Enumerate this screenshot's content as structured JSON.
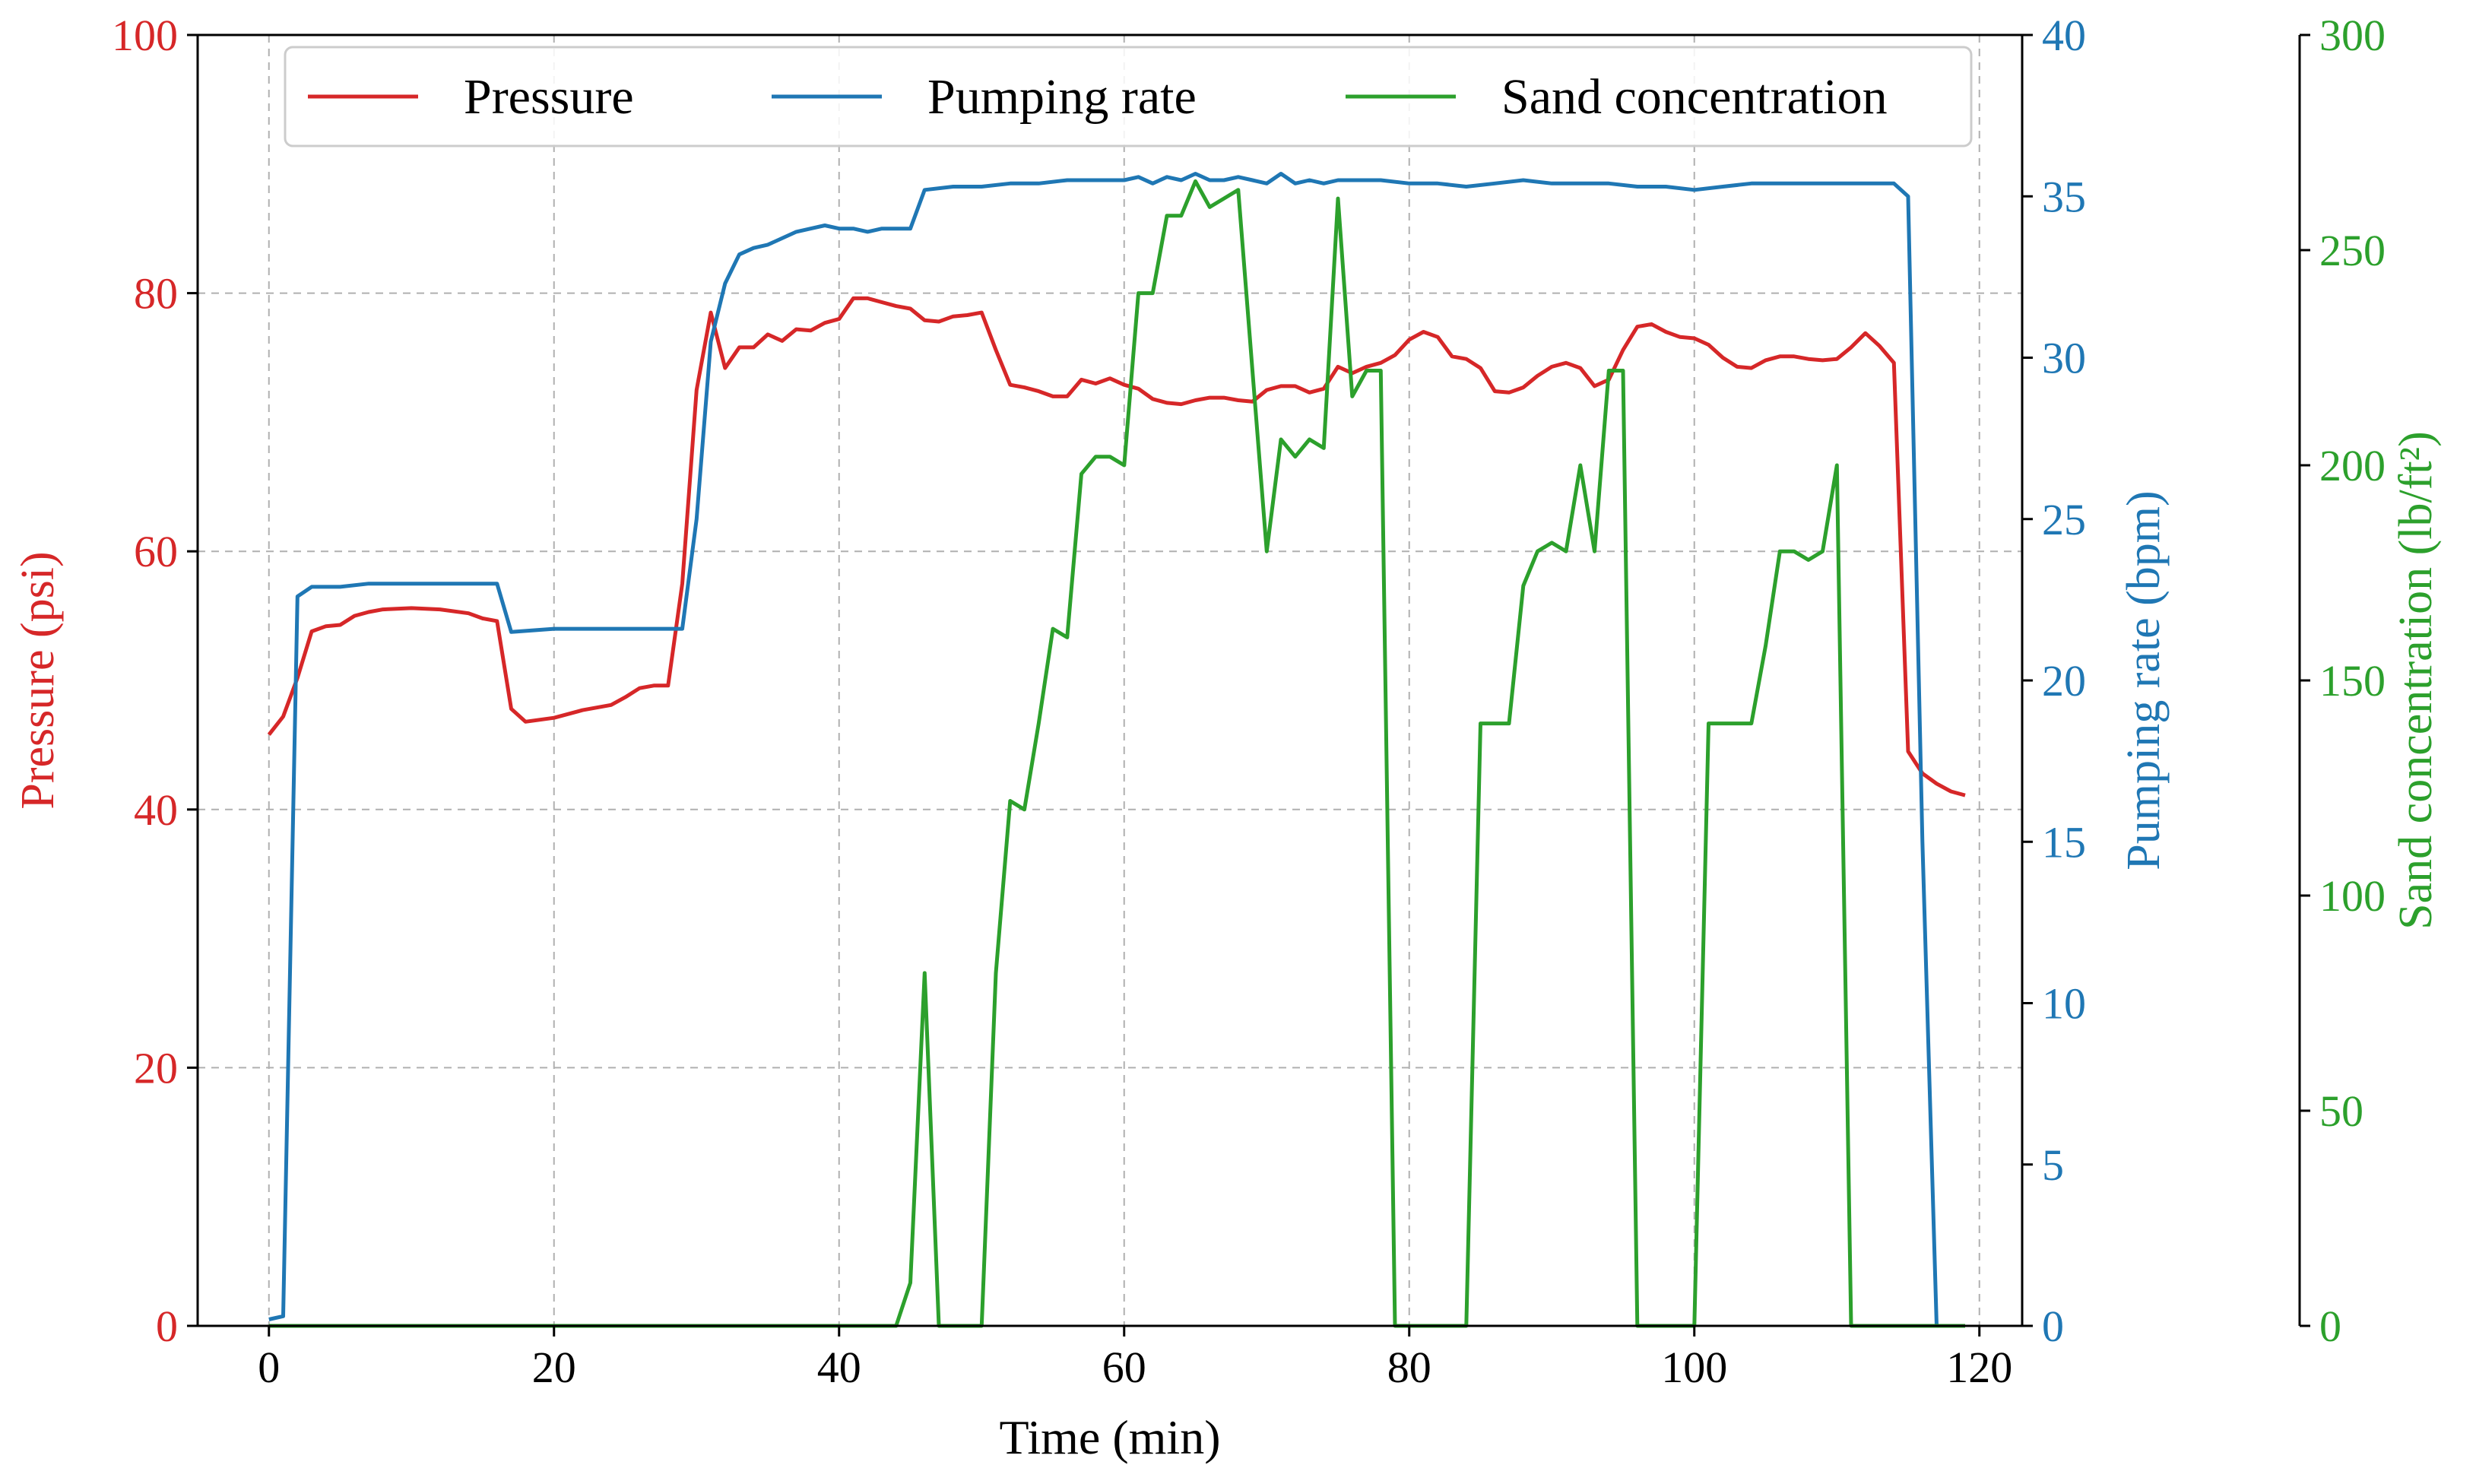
{
  "colors": {
    "pressure": "#d62728",
    "pumping_rate": "#1f77b4",
    "sand_concentration": "#2ca02c",
    "axis": "#000000",
    "grid": "#b0b0b0"
  },
  "chart_data": {
    "type": "line",
    "title": "",
    "xlabel": "Time (min)",
    "xlim": [
      -5,
      123
    ],
    "xticks": [
      0,
      20,
      40,
      60,
      80,
      100,
      120
    ],
    "grid": true,
    "legend_position": "top",
    "axes": [
      {
        "id": "pressure",
        "side": "left",
        "label": "Pressure (psi)",
        "ylim": [
          0,
          100
        ],
        "ticks": [
          0,
          20,
          40,
          60,
          80,
          100
        ]
      },
      {
        "id": "pumping_rate",
        "side": "right",
        "label": "Pumping rate (bpm)",
        "ylim": [
          0,
          40
        ],
        "ticks": [
          0,
          5,
          10,
          15,
          20,
          25,
          30,
          35,
          40
        ]
      },
      {
        "id": "sand_concentration",
        "side": "right-outer",
        "label": "Sand concentration (lb/ft²)",
        "ylim": [
          0,
          300
        ],
        "ticks": [
          0,
          50,
          100,
          150,
          200,
          250,
          300
        ]
      }
    ],
    "series": [
      {
        "name": "Pressure",
        "axis": "pressure",
        "x": [
          0,
          1,
          2,
          3,
          4,
          5,
          6,
          7,
          8,
          10,
          12,
          14,
          15,
          16,
          17,
          18,
          20,
          22,
          24,
          25,
          26,
          27,
          28,
          29,
          30,
          31,
          32,
          33,
          34,
          35,
          36,
          37,
          38,
          39,
          40,
          41,
          42,
          43,
          44,
          45,
          46,
          47,
          48,
          49,
          50,
          51,
          52,
          53,
          54,
          55,
          56,
          57,
          58,
          59,
          60,
          61,
          62,
          63,
          64,
          65,
          66,
          67,
          68,
          69,
          70,
          71,
          72,
          73,
          74,
          75,
          76,
          77,
          78,
          79,
          80,
          81,
          82,
          83,
          84,
          85,
          86,
          87,
          88,
          89,
          90,
          91,
          92,
          93,
          94,
          95,
          96,
          97,
          98,
          99,
          100,
          101,
          102,
          103,
          104,
          105,
          106,
          107,
          108,
          109,
          110,
          111,
          112,
          113,
          114,
          115,
          116,
          117,
          118,
          119
        ],
        "y": [
          45.8,
          47.2,
          50.2,
          53.8,
          54.2,
          54.3,
          55.0,
          55.3,
          55.5,
          55.6,
          55.5,
          55.2,
          54.8,
          54.6,
          47.8,
          46.8,
          47.1,
          47.7,
          48.1,
          48.7,
          49.4,
          49.6,
          49.6,
          57.5,
          72.5,
          78.5,
          74.2,
          75.8,
          75.8,
          76.8,
          76.3,
          77.2,
          77.1,
          77.7,
          78.0,
          79.6,
          79.6,
          79.3,
          79.0,
          78.8,
          77.9,
          77.8,
          78.2,
          78.3,
          78.5,
          75.6,
          72.9,
          72.7,
          72.4,
          72.0,
          72.0,
          73.3,
          73.0,
          73.4,
          72.9,
          72.6,
          71.8,
          71.5,
          71.4,
          71.7,
          71.9,
          71.9,
          71.7,
          71.6,
          72.5,
          72.8,
          72.8,
          72.3,
          72.6,
          74.3,
          73.8,
          74.3,
          74.6,
          75.2,
          76.4,
          77.0,
          76.6,
          75.1,
          74.9,
          74.2,
          72.4,
          72.3,
          72.7,
          73.6,
          74.3,
          74.6,
          74.2,
          72.8,
          73.3,
          75.6,
          77.4,
          77.6,
          77.0,
          76.6,
          76.5,
          76.0,
          75.0,
          74.3,
          74.2,
          74.8,
          75.1,
          75.1,
          74.9,
          74.8,
          74.9,
          75.8,
          76.9,
          75.9,
          74.6,
          44.5,
          42.8,
          42.0,
          41.4,
          41.1
        ]
      },
      {
        "name": "Pumping rate",
        "axis": "pumping_rate",
        "x": [
          0,
          1,
          2,
          3,
          5,
          7,
          10,
          13,
          16,
          17,
          20,
          23,
          26,
          28,
          29,
          30,
          31,
          32,
          33,
          34,
          35,
          36,
          37,
          38,
          39,
          40,
          41,
          42,
          43,
          44,
          45,
          46,
          48,
          50,
          52,
          54,
          56,
          58,
          60,
          61,
          62,
          63,
          64,
          65,
          66,
          67,
          68,
          69,
          70,
          71,
          72,
          73,
          74,
          75,
          76,
          78,
          80,
          82,
          84,
          86,
          88,
          90,
          92,
          94,
          96,
          98,
          100,
          102,
          104,
          106,
          108,
          110,
          112,
          114,
          115,
          116,
          117,
          118
        ],
        "y": [
          0.2,
          0.3,
          22.6,
          22.9,
          22.9,
          23.0,
          23.0,
          23.0,
          23.0,
          21.5,
          21.6,
          21.6,
          21.6,
          21.6,
          21.6,
          25.0,
          30.5,
          32.3,
          33.2,
          33.4,
          33.5,
          33.7,
          33.9,
          34.0,
          34.1,
          34.0,
          34.0,
          33.9,
          34.0,
          34.0,
          34.0,
          35.2,
          35.3,
          35.3,
          35.4,
          35.4,
          35.5,
          35.5,
          35.5,
          35.6,
          35.4,
          35.6,
          35.5,
          35.7,
          35.5,
          35.5,
          35.6,
          35.5,
          35.4,
          35.7,
          35.4,
          35.5,
          35.4,
          35.5,
          35.5,
          35.5,
          35.4,
          35.4,
          35.3,
          35.4,
          35.5,
          35.4,
          35.4,
          35.4,
          35.3,
          35.3,
          35.2,
          35.3,
          35.4,
          35.4,
          35.4,
          35.4,
          35.4,
          35.4,
          35.0,
          15.0,
          0.0,
          0.0
        ]
      },
      {
        "name": "Sand concentration",
        "axis": "sand_concentration",
        "x": [
          0,
          10,
          20,
          30,
          40,
          44,
          45,
          46,
          47,
          48,
          50,
          51,
          52,
          53,
          54,
          55,
          56,
          57,
          58,
          59,
          60,
          61,
          62,
          63,
          64,
          65,
          66,
          67,
          68,
          69,
          70,
          71,
          72,
          73,
          74,
          75,
          76,
          77,
          78,
          79,
          80,
          82,
          84,
          85,
          86,
          87,
          88,
          89,
          90,
          91,
          92,
          93,
          94,
          95,
          96,
          97,
          98,
          100,
          101,
          102,
          103,
          104,
          105,
          106,
          107,
          108,
          109,
          110,
          111,
          112,
          114,
          116,
          118,
          119
        ],
        "y": [
          0,
          0,
          0,
          0,
          0,
          0,
          10,
          82,
          0,
          0,
          0,
          82,
          122,
          120,
          140,
          162,
          160,
          198,
          202,
          202,
          200,
          240,
          240,
          258,
          258,
          266,
          260,
          262,
          264,
          222,
          180,
          206,
          202,
          206,
          204,
          262,
          216,
          222,
          222,
          0,
          0,
          0,
          0,
          140,
          140,
          140,
          172,
          180,
          182,
          180,
          200,
          180,
          222,
          222,
          0,
          0,
          0,
          0,
          140,
          140,
          140,
          140,
          158,
          180,
          180,
          178,
          180,
          200,
          0,
          0,
          0,
          0,
          0,
          0
        ]
      }
    ]
  }
}
